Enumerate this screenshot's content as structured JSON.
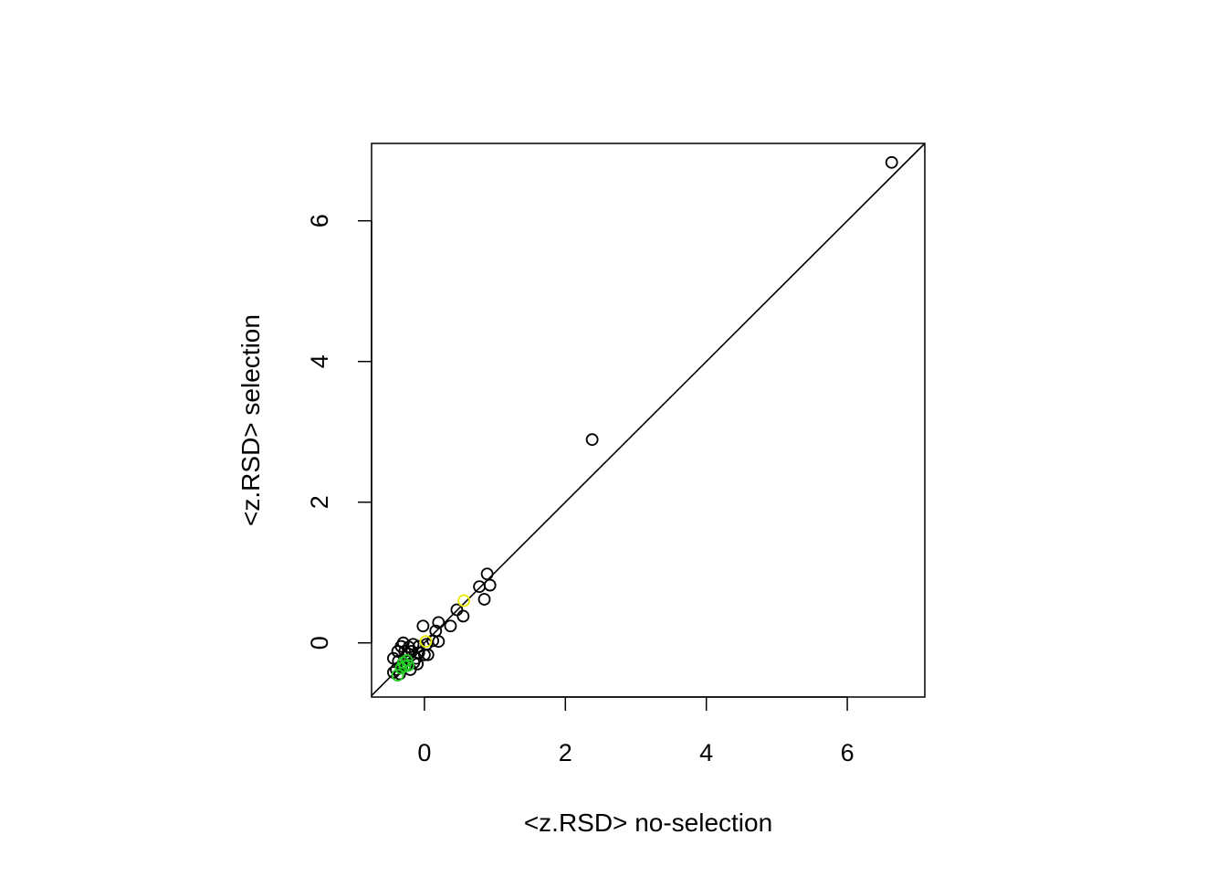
{
  "chart_data": {
    "type": "scatter",
    "xlabel": "<z.RSD> no-selection",
    "ylabel": "<z.RSD> selection",
    "xlim": [
      -0.75,
      7.1
    ],
    "ylim": [
      -0.77,
      7.1
    ],
    "x_ticks": [
      0,
      2,
      4,
      6
    ],
    "y_ticks": [
      0,
      2,
      4,
      6
    ],
    "x_tick_labels": [
      "0",
      "2",
      "4",
      "6"
    ],
    "y_tick_labels": [
      "0",
      "2",
      "4",
      "6"
    ],
    "grid": false,
    "reference_line": {
      "type": "identity",
      "slope": 1,
      "intercept": 0,
      "color": "#000000"
    },
    "colors": {
      "default": "#000000",
      "green": "#22cc22",
      "yellow": "#e8e800"
    },
    "series": [
      {
        "color": "#000000",
        "points": [
          [
            6.63,
            6.83
          ],
          [
            2.38,
            2.89
          ],
          [
            0.89,
            0.98
          ],
          [
            0.93,
            0.82
          ],
          [
            0.78,
            0.8
          ],
          [
            0.85,
            0.62
          ],
          [
            0.55,
            0.38
          ],
          [
            0.46,
            0.47
          ],
          [
            0.37,
            0.24
          ],
          [
            0.2,
            0.29
          ],
          [
            0.16,
            0.17
          ],
          [
            -0.02,
            0.24
          ],
          [
            0.2,
            0.02
          ],
          [
            0.12,
            0.03
          ],
          [
            0.05,
            -0.17
          ],
          [
            0.0,
            -0.17
          ],
          [
            -0.08,
            -0.05
          ],
          [
            -0.16,
            -0.02
          ],
          [
            -0.3,
            0.0
          ],
          [
            -0.38,
            -0.12
          ],
          [
            -0.33,
            -0.05
          ],
          [
            -0.22,
            -0.16
          ],
          [
            -0.12,
            -0.22
          ],
          [
            -0.1,
            -0.3
          ],
          [
            -0.18,
            -0.12
          ],
          [
            -0.26,
            -0.2
          ],
          [
            -0.3,
            -0.28
          ],
          [
            -0.37,
            -0.26
          ],
          [
            -0.44,
            -0.22
          ],
          [
            -0.4,
            -0.38
          ],
          [
            -0.35,
            -0.44
          ],
          [
            -0.44,
            -0.42
          ],
          [
            -0.2,
            -0.38
          ],
          [
            -0.25,
            -0.32
          ],
          [
            -0.15,
            -0.28
          ],
          [
            -0.08,
            -0.14
          ],
          [
            0.03,
            -0.02
          ],
          [
            -0.28,
            -0.12
          ],
          [
            -0.22,
            -0.06
          ],
          [
            -0.32,
            -0.34
          ]
        ]
      },
      {
        "color": "#22cc22",
        "points": [
          [
            -0.38,
            -0.46
          ],
          [
            -0.33,
            -0.36
          ],
          [
            -0.3,
            -0.28
          ],
          [
            -0.25,
            -0.25
          ],
          [
            -0.28,
            -0.33
          ],
          [
            -0.23,
            -0.32
          ]
        ]
      },
      {
        "color": "#e8e800",
        "points": [
          [
            0.56,
            0.6
          ],
          [
            0.02,
            0.02
          ]
        ]
      }
    ]
  }
}
